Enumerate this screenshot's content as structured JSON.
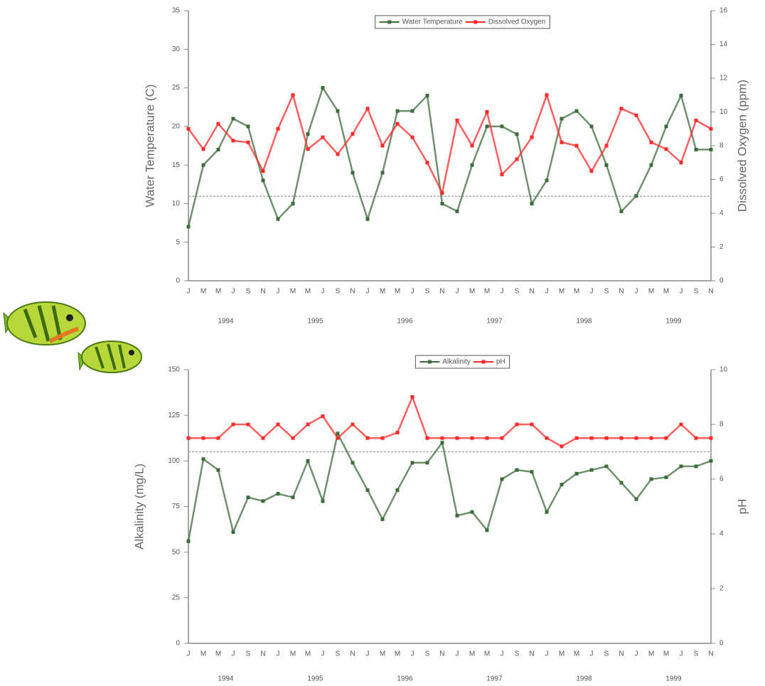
{
  "chart_data": [
    {
      "type": "line",
      "y_label": "Water Temperature (C)",
      "y2_label": "Dissolved Oxygen (ppm)",
      "categories": [
        "J",
        "M",
        "M",
        "J",
        "S",
        "N",
        "J",
        "M",
        "M",
        "J",
        "S",
        "N",
        "J",
        "M",
        "M",
        "J",
        "S",
        "N",
        "J",
        "M",
        "M",
        "J",
        "S",
        "N",
        "J",
        "M",
        "M",
        "J",
        "S",
        "N",
        "J",
        "M",
        "M",
        "J",
        "S",
        "N"
      ],
      "years": [
        1994,
        1995,
        1996,
        1997,
        1998,
        1999
      ],
      "ylim": [
        0,
        35
      ],
      "yticks": [
        0,
        5,
        10,
        15,
        20,
        25,
        30,
        35
      ],
      "y2lim": [
        0,
        16
      ],
      "y2ticks": [
        0,
        2,
        4,
        6,
        8,
        10,
        12,
        14,
        16
      ],
      "y2_reference": 5,
      "grid": false,
      "legend": "top",
      "series": [
        {
          "name": "Water Temperature",
          "color": "#3d6b3d",
          "axis": "y",
          "values": [
            7,
            15,
            17,
            21,
            20,
            13,
            8,
            10,
            19,
            25,
            22,
            14,
            8,
            14,
            22,
            22,
            24,
            10,
            9,
            15,
            20,
            20,
            19,
            10,
            13,
            21,
            22,
            20,
            15,
            9,
            11,
            15,
            20,
            24,
            17,
            17
          ]
        },
        {
          "name": "Dissolved Oxygen",
          "color": "#ff2a2a",
          "axis": "y2",
          "values": [
            9,
            7.8,
            9.3,
            8.3,
            8.2,
            6.5,
            9,
            11,
            7.8,
            8.5,
            7.5,
            8.7,
            10.2,
            8,
            9.3,
            8.5,
            7,
            5.2,
            9.5,
            8,
            10,
            6.3,
            7.2,
            8.5,
            11,
            8.2,
            8,
            6.5,
            8,
            10.2,
            9.8,
            8.2,
            7.8,
            7,
            9.5,
            9
          ]
        }
      ]
    },
    {
      "type": "line",
      "y_label": "Alkalinity (mg/L)",
      "y2_label": "pH",
      "categories": [
        "J",
        "M",
        "M",
        "J",
        "S",
        "N",
        "J",
        "M",
        "M",
        "J",
        "S",
        "N",
        "J",
        "M",
        "M",
        "J",
        "S",
        "N",
        "J",
        "M",
        "M",
        "J",
        "S",
        "N",
        "J",
        "M",
        "M",
        "J",
        "S",
        "N",
        "J",
        "M",
        "M",
        "J",
        "S",
        "N"
      ],
      "years": [
        1994,
        1995,
        1996,
        1997,
        1998,
        1999
      ],
      "ylim": [
        0,
        150
      ],
      "yticks": [
        0,
        25,
        50,
        75,
        100,
        125,
        150
      ],
      "y2lim": [
        0,
        10
      ],
      "y2ticks": [
        0,
        2,
        4,
        6,
        8,
        10
      ],
      "y2_reference": 7,
      "grid": false,
      "legend": "top",
      "series": [
        {
          "name": "Alkalinity",
          "color": "#3d6b3d",
          "axis": "y",
          "values": [
            56,
            101,
            95,
            61,
            80,
            78,
            82,
            80,
            100,
            78,
            115,
            99,
            84,
            68,
            84,
            99,
            99,
            110,
            70,
            72,
            62,
            90,
            95,
            94,
            72,
            87,
            93,
            95,
            97,
            88,
            79,
            90,
            91,
            97,
            97,
            100
          ]
        },
        {
          "name": "pH",
          "color": "#ff2a2a",
          "axis": "y2",
          "values": [
            7.5,
            7.5,
            7.5,
            8,
            8,
            7.5,
            8,
            7.5,
            8,
            8.3,
            7.5,
            8,
            7.5,
            7.5,
            7.7,
            9,
            7.5,
            7.5,
            7.5,
            7.5,
            7.5,
            7.5,
            8,
            8,
            7.5,
            7.2,
            7.5,
            7.5,
            7.5,
            7.5,
            7.5,
            7.5,
            7.5,
            8,
            7.5,
            7.5
          ]
        }
      ]
    }
  ]
}
